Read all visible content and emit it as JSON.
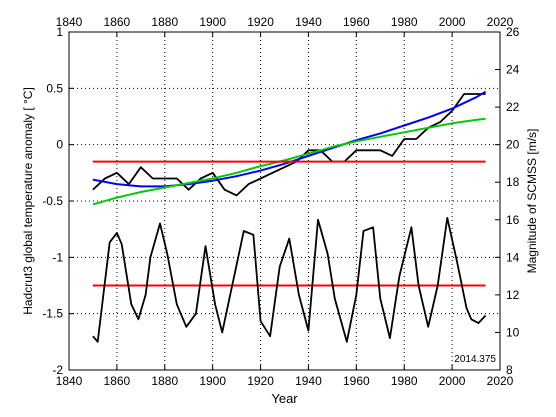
{
  "chart_data": {
    "type": "line",
    "title": "",
    "xlabel": "Year",
    "ylabel_left": "Hadcrut3 global temperature anomaly [ °C]",
    "ylabel_right": "Magnitude of SCMSS [m/s]",
    "annotation": "2014.375",
    "xlim": [
      1840,
      2020
    ],
    "ylim_left": [
      -2,
      1
    ],
    "ylim_right": [
      8,
      26
    ],
    "x_ticks": [
      "1840",
      "1860",
      "1880",
      "1900",
      "1920",
      "1940",
      "1960",
      "1980",
      "2000",
      "2020"
    ],
    "y_ticks_left": [
      "-2",
      "-1.5",
      "-1",
      "-0.5",
      "0",
      "0.5",
      "1"
    ],
    "y_ticks_right": [
      "8",
      "10",
      "12",
      "14",
      "16",
      "18",
      "20",
      "22",
      "24",
      "26"
    ],
    "grid": true,
    "series": [
      {
        "axis": "left",
        "color": "#000000",
        "x": [
          1850,
          1855,
          1860,
          1865,
          1870,
          1875,
          1880,
          1885,
          1890,
          1895,
          1900,
          1905,
          1910,
          1915,
          1920,
          1925,
          1930,
          1935,
          1940,
          1945,
          1950,
          1955,
          1960,
          1965,
          1970,
          1975,
          1980,
          1985,
          1990,
          1995,
          2000,
          2005,
          2010,
          2014
        ],
        "values": [
          -0.4,
          -0.3,
          -0.25,
          -0.35,
          -0.2,
          -0.3,
          -0.3,
          -0.3,
          -0.4,
          -0.3,
          -0.25,
          -0.4,
          -0.45,
          -0.35,
          -0.3,
          -0.25,
          -0.2,
          -0.15,
          -0.05,
          -0.05,
          -0.15,
          -0.15,
          -0.05,
          -0.05,
          -0.05,
          -0.1,
          0.05,
          0.05,
          0.15,
          0.2,
          0.3,
          0.45,
          0.45,
          0.45
        ]
      },
      {
        "axis": "left",
        "color": "#0000ff",
        "x": [
          1850,
          1860,
          1870,
          1880,
          1890,
          1900,
          1910,
          1920,
          1930,
          1940,
          1950,
          1960,
          1970,
          1980,
          1990,
          2000,
          2010,
          2014
        ],
        "values": [
          -0.31,
          -0.35,
          -0.37,
          -0.37,
          -0.35,
          -0.32,
          -0.28,
          -0.23,
          -0.17,
          -0.1,
          -0.03,
          0.04,
          0.1,
          0.17,
          0.24,
          0.32,
          0.42,
          0.47
        ]
      },
      {
        "axis": "left",
        "color": "#00cc00",
        "x": [
          1850,
          1860,
          1870,
          1880,
          1890,
          1900,
          1910,
          1920,
          1930,
          1940,
          1950,
          1960,
          1970,
          1980,
          1990,
          2000,
          2010,
          2014
        ],
        "values": [
          -0.53,
          -0.47,
          -0.42,
          -0.38,
          -0.34,
          -0.3,
          -0.25,
          -0.19,
          -0.14,
          -0.08,
          -0.02,
          0.03,
          0.07,
          0.11,
          0.15,
          0.19,
          0.22,
          0.23
        ]
      },
      {
        "axis": "left",
        "color": "#ff0000",
        "x": [
          1850,
          2014
        ],
        "values": [
          -0.15,
          -0.15
        ]
      },
      {
        "axis": "right",
        "color": "#ff0000",
        "x": [
          1850,
          2014
        ],
        "values": [
          12.5,
          12.5
        ]
      },
      {
        "axis": "right",
        "color": "#000000",
        "x": [
          1850,
          1852,
          1857,
          1860,
          1862,
          1866,
          1869,
          1872,
          1874,
          1878,
          1881,
          1885,
          1889,
          1893,
          1897,
          1901,
          1904,
          1909,
          1913,
          1917,
          1920,
          1924,
          1928,
          1932,
          1936,
          1940,
          1944,
          1948,
          1951,
          1956,
          1960,
          1963,
          1967,
          1970,
          1974,
          1978,
          1983,
          1986,
          1990,
          1994,
          1998,
          2002,
          2006,
          2008,
          2011,
          2014
        ],
        "values": [
          9.8,
          9.5,
          14.8,
          15.3,
          14.7,
          11.5,
          10.7,
          12.0,
          14.0,
          15.8,
          14.2,
          11.5,
          10.3,
          11.0,
          14.6,
          11.5,
          10.0,
          13.0,
          15.4,
          15.2,
          10.6,
          9.8,
          13.5,
          15.0,
          12.0,
          10.1,
          16.0,
          14.2,
          11.8,
          9.5,
          12.0,
          15.4,
          15.6,
          11.8,
          9.7,
          13.0,
          15.6,
          12.5,
          10.3,
          12.5,
          16.1,
          13.8,
          11.3,
          10.7,
          10.5,
          10.9
        ]
      }
    ]
  }
}
